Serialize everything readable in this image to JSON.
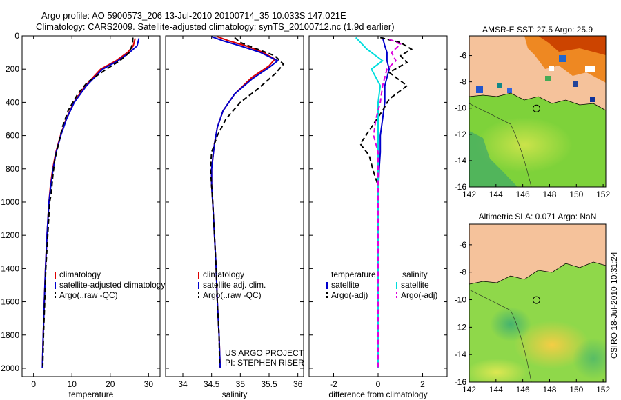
{
  "title_line1": "Argo profile: AO 5900573_206 13-Jul-2010 20100714_35 10.033S 147.021E",
  "title_line2": "Climatology: CARS2009. Satellite-adjusted climatology: synTS_20100712.nc (1.9d earlier)",
  "side_label": "CSIRO 18-Jul-2010 10:31:24",
  "colors": {
    "climatology": "#dd0000",
    "satellite": "#0000cc",
    "argo": "#000000",
    "satellite_sal": "#00dddd",
    "argo_sal": "#dd00dd",
    "land": "#f5c29b"
  },
  "chart_data": [
    {
      "type": "line",
      "name": "temperature",
      "xlabel": "temperature",
      "ylabel": "",
      "xlim": [
        -3,
        33
      ],
      "ylim": [
        2050,
        0
      ],
      "xticks": [
        0,
        10,
        20,
        30
      ],
      "xtick_labels": [
        "0",
        "10",
        "20",
        "30"
      ],
      "yticks": [
        0,
        200,
        400,
        600,
        800,
        1000,
        1200,
        1400,
        1600,
        1800,
        2000
      ],
      "ytick_labels": [
        "0",
        "200",
        "400",
        "600",
        "800",
        "1000",
        "1200",
        "1400",
        "1600",
        "1800",
        "2000"
      ],
      "series": [
        {
          "name": "climatology",
          "color": "#dd0000",
          "dash": "",
          "points": [
            [
              26.5,
              15
            ],
            [
              26.0,
              60
            ],
            [
              24.5,
              100
            ],
            [
              21.5,
              150
            ],
            [
              17.5,
              200
            ],
            [
              13.5,
              300
            ],
            [
              10.5,
              400
            ],
            [
              8.5,
              500
            ],
            [
              7.0,
              600
            ],
            [
              5.8,
              700
            ],
            [
              5.0,
              800
            ],
            [
              4.4,
              900
            ],
            [
              4.0,
              1000
            ],
            [
              3.5,
              1200
            ],
            [
              3.1,
              1400
            ],
            [
              2.8,
              1600
            ],
            [
              2.5,
              1800
            ],
            [
              2.3,
              2000
            ]
          ]
        },
        {
          "name": "satellite-adjusted climatology",
          "color": "#0000cc",
          "dash": "",
          "points": [
            [
              27.5,
              15
            ],
            [
              27.0,
              60
            ],
            [
              25.0,
              100
            ],
            [
              22.0,
              150
            ],
            [
              18.0,
              200
            ],
            [
              13.8,
              300
            ],
            [
              10.6,
              400
            ],
            [
              8.6,
              500
            ],
            [
              7.1,
              600
            ],
            [
              5.9,
              700
            ],
            [
              5.1,
              800
            ],
            [
              4.5,
              900
            ],
            [
              4.0,
              1000
            ],
            [
              3.5,
              1200
            ],
            [
              3.1,
              1400
            ],
            [
              2.8,
              1600
            ],
            [
              2.5,
              1800
            ],
            [
              2.3,
              2000
            ]
          ]
        },
        {
          "name": "Argo(..raw -QC)",
          "color": "#000000",
          "dash": "7,4",
          "points": [
            [
              25.9,
              10
            ],
            [
              25.8,
              50
            ],
            [
              25.0,
              100
            ],
            [
              22.5,
              150
            ],
            [
              19.0,
              200
            ],
            [
              14.0,
              280
            ],
            [
              11.5,
              350
            ],
            [
              9.0,
              450
            ],
            [
              7.5,
              550
            ],
            [
              6.5,
              650
            ],
            [
              5.5,
              750
            ],
            [
              5.0,
              850
            ],
            [
              4.6,
              950
            ],
            [
              4.2,
              1000
            ],
            [
              3.7,
              1200
            ],
            [
              3.2,
              1400
            ],
            [
              2.9,
              1600
            ],
            [
              2.6,
              1800
            ],
            [
              2.4,
              1990
            ]
          ]
        }
      ],
      "legend": {
        "position": "lower-middle",
        "entries": [
          "climatology",
          "satellite-adjusted climatology",
          "Argo(..raw -QC)"
        ]
      }
    },
    {
      "type": "line",
      "name": "salinity",
      "xlabel": "salinity",
      "xlim": [
        33.7,
        36.1
      ],
      "ylim": [
        2050,
        0
      ],
      "xticks": [
        34,
        34.5,
        35,
        35.5,
        36
      ],
      "xtick_labels": [
        "34",
        "34.5",
        "35",
        "35.5",
        "36"
      ],
      "series": [
        {
          "name": "climatology",
          "color": "#dd0000",
          "dash": "",
          "points": [
            [
              34.6,
              5
            ],
            [
              34.8,
              30
            ],
            [
              35.1,
              60
            ],
            [
              35.4,
              100
            ],
            [
              35.6,
              140
            ],
            [
              35.5,
              180
            ],
            [
              35.2,
              250
            ],
            [
              34.9,
              350
            ],
            [
              34.7,
              450
            ],
            [
              34.6,
              550
            ],
            [
              34.55,
              650
            ],
            [
              34.5,
              800
            ],
            [
              34.5,
              900
            ],
            [
              34.52,
              1000
            ],
            [
              34.55,
              1200
            ],
            [
              34.58,
              1400
            ],
            [
              34.6,
              1600
            ],
            [
              34.63,
              1800
            ],
            [
              34.65,
              2000
            ]
          ]
        },
        {
          "name": "satellite adj. clim.",
          "color": "#0000cc",
          "dash": "",
          "points": [
            [
              34.5,
              5
            ],
            [
              34.7,
              30
            ],
            [
              35.0,
              60
            ],
            [
              35.35,
              100
            ],
            [
              35.65,
              150
            ],
            [
              35.5,
              190
            ],
            [
              35.2,
              260
            ],
            [
              34.9,
              350
            ],
            [
              34.7,
              450
            ],
            [
              34.6,
              550
            ],
            [
              34.55,
              650
            ],
            [
              34.5,
              800
            ],
            [
              34.5,
              900
            ],
            [
              34.52,
              1000
            ],
            [
              34.55,
              1200
            ],
            [
              34.58,
              1400
            ],
            [
              34.6,
              1600
            ],
            [
              34.63,
              1800
            ],
            [
              34.65,
              2000
            ]
          ]
        },
        {
          "name": "Argo(..raw -QC)",
          "color": "#000000",
          "dash": "7,4",
          "points": [
            [
              34.9,
              10
            ],
            [
              35.0,
              40
            ],
            [
              35.3,
              80
            ],
            [
              35.6,
              120
            ],
            [
              35.75,
              170
            ],
            [
              35.6,
              230
            ],
            [
              35.3,
              320
            ],
            [
              35.0,
              400
            ],
            [
              34.75,
              500
            ],
            [
              34.6,
              600
            ],
            [
              34.5,
              700
            ],
            [
              34.48,
              800
            ],
            [
              34.5,
              900
            ],
            [
              34.52,
              1000
            ],
            [
              34.55,
              1200
            ],
            [
              34.58,
              1400
            ],
            [
              34.6,
              1600
            ],
            [
              34.63,
              1800
            ],
            [
              34.64,
              1990
            ]
          ]
        }
      ],
      "legend": {
        "position": "lower-middle",
        "entries": [
          "climatology",
          "satellite adj. clim.",
          "Argo(..raw -QC)"
        ]
      },
      "annotation": [
        "US ARGO PROJECT",
        "PI: STEPHEN RISER"
      ]
    },
    {
      "type": "line",
      "name": "difference",
      "xlabel": "difference from climatology",
      "xlim": [
        -3.1,
        3.1
      ],
      "ylim": [
        2050,
        0
      ],
      "xticks": [
        -2,
        0,
        2
      ],
      "xtick_labels": [
        "-2",
        "0",
        "2"
      ],
      "series": [
        {
          "name": "temperature satellite",
          "color": "#0000cc",
          "dash": "",
          "points": [
            [
              0.2,
              10
            ],
            [
              0.3,
              60
            ],
            [
              0.4,
              100
            ],
            [
              0.4,
              150
            ],
            [
              0.5,
              200
            ],
            [
              0.3,
              300
            ],
            [
              0.3,
              400
            ],
            [
              0.2,
              500
            ],
            [
              0.1,
              600
            ],
            [
              0.1,
              700
            ],
            [
              0.05,
              800
            ],
            [
              0,
              1000
            ],
            [
              0,
              1500
            ],
            [
              0,
              2000
            ]
          ]
        },
        {
          "name": "temperature Argo(-adj)",
          "color": "#000000",
          "dash": "7,4",
          "points": [
            [
              0.1,
              10
            ],
            [
              1.0,
              40
            ],
            [
              1.5,
              80
            ],
            [
              1.0,
              120
            ],
            [
              1.3,
              160
            ],
            [
              0.5,
              220
            ],
            [
              1.3,
              300
            ],
            [
              0.5,
              380
            ],
            [
              0.2,
              450
            ],
            [
              -0.3,
              550
            ],
            [
              -0.8,
              650
            ],
            [
              -0.4,
              720
            ],
            [
              -0.2,
              820
            ],
            [
              0,
              900
            ],
            [
              0,
              1000
            ],
            [
              0,
              1500
            ],
            [
              0,
              2000
            ]
          ]
        },
        {
          "name": "salinity satellite",
          "color": "#00dddd",
          "dash": "",
          "points": [
            [
              -1.0,
              10
            ],
            [
              -0.5,
              80
            ],
            [
              0.2,
              150
            ],
            [
              -0.3,
              200
            ],
            [
              0.1,
              300
            ],
            [
              0,
              400
            ],
            [
              0,
              500
            ],
            [
              0,
              700
            ],
            [
              0,
              1000
            ],
            [
              0,
              1500
            ],
            [
              0,
              2000
            ]
          ]
        },
        {
          "name": "salinity Argo(-adj)",
          "color": "#dd00dd",
          "dash": "7,4",
          "points": [
            [
              0.5,
              20
            ],
            [
              1.0,
              50
            ],
            [
              0.6,
              100
            ],
            [
              0.8,
              150
            ],
            [
              0.4,
              200
            ],
            [
              0.2,
              300
            ],
            [
              0.1,
              400
            ],
            [
              -0.1,
              500
            ],
            [
              -0.2,
              600
            ],
            [
              0,
              700
            ],
            [
              0,
              1000
            ],
            [
              0,
              1500
            ],
            [
              0,
              2000
            ]
          ]
        }
      ],
      "legend": {
        "position": "lower-middle",
        "headers": [
          "temperature",
          "salinity"
        ],
        "entries": [
          "satellite",
          "Argo(-adj)",
          "satellite",
          "Argo(-adj)"
        ]
      }
    },
    {
      "type": "heatmap",
      "name": "sst-map",
      "title": "AMSR-E SST: 27.5 Argo: 25.9",
      "xlim": [
        142,
        152.2
      ],
      "ylim": [
        -16,
        -4.5
      ],
      "xticks": [
        142,
        144,
        146,
        148,
        150,
        152
      ],
      "xtick_labels": [
        "142",
        "144",
        "146",
        "148",
        "150",
        "152"
      ],
      "yticks": [
        -6,
        -8,
        -10,
        -12,
        -14,
        -16
      ],
      "ytick_labels": [
        "-6",
        "-8",
        "-10",
        "-12",
        "-14",
        "-16"
      ],
      "profile_location": [
        147.02,
        -10.03
      ]
    },
    {
      "type": "heatmap",
      "name": "sla-map",
      "title": "Altimetric SLA: 0.071 Argo: NaN",
      "xlim": [
        142,
        152.2
      ],
      "ylim": [
        -16,
        -4.5
      ],
      "xticks": [
        142,
        144,
        146,
        148,
        150,
        152
      ],
      "xtick_labels": [
        "142",
        "144",
        "146",
        "148",
        "150",
        "152"
      ],
      "yticks": [
        -6,
        -8,
        -10,
        -12,
        -14,
        -16
      ],
      "ytick_labels": [
        "-6",
        "-8",
        "-10",
        "-12",
        "-14",
        "-16"
      ],
      "profile_location": [
        147.02,
        -10.03
      ]
    }
  ]
}
